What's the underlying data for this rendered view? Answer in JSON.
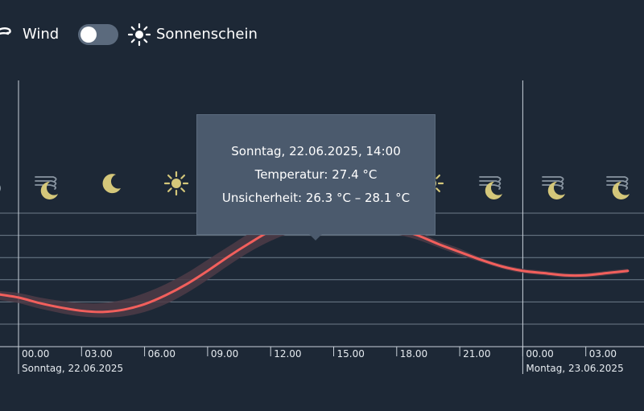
{
  "legend": {
    "wind_label": "Wind",
    "wind_icon": "wind-icon",
    "sunshine_label": "Sonnenschein",
    "sunshine_icon": "sun-icon",
    "sunshine_toggle_on": false
  },
  "tooltip": {
    "line1": "Sonntag, 22.06.2025, 14:00",
    "line2": "Temperatur: 27.4 °C",
    "line3": "Unsicherheit: 26.3 °C – 28.1 °C"
  },
  "colors": {
    "background": "#1d2836",
    "line": "#f25f5c",
    "band": "#4e3b47",
    "grid": "#6f7d8b",
    "icon": "#d4c77a",
    "tooltip": "#4b5a6d"
  },
  "weather_icons": [
    "cloud-icon",
    "wind-icon",
    "moon-icon",
    "moon-icon",
    "sun-icon",
    "sun-icon",
    "sun-icon",
    "sun-icon",
    "sun-icon",
    "wind-icon",
    "moon-icon",
    "wind-icon",
    "moon-icon",
    "wind-icon",
    "moon-icon"
  ],
  "chart_data": {
    "type": "line",
    "series": [
      {
        "x": [
          "21.06 23:00",
          "22.06 00:00",
          "22.06 01:00",
          "22.06 02:00",
          "22.06 03:00",
          "22.06 04:00",
          "22.06 05:00",
          "22.06 06:00",
          "22.06 07:00",
          "22.06 08:00",
          "22.06 09:00",
          "22.06 10:00",
          "22.06 11:00",
          "22.06 12:00",
          "22.06 13:00",
          "22.06 14:00",
          "22.06 15:00",
          "22.06 16:00",
          "22.06 17:00",
          "22.06 18:00",
          "22.06 19:00",
          "22.06 20:00",
          "22.06 21:00",
          "22.06 22:00",
          "22.06 23:00",
          "23.06 00:00",
          "23.06 01:00",
          "23.06 02:00",
          "23.06 03:00",
          "23.06 04:00",
          "23.06 05:00"
        ],
        "values": [
          20.7,
          20.4,
          19.9,
          19.5,
          19.2,
          19.1,
          19.3,
          19.8,
          20.6,
          21.6,
          22.8,
          24.1,
          25.3,
          26.4,
          27.1,
          27.4,
          27.5,
          27.4,
          27.1,
          26.6,
          26.0,
          25.2,
          24.5,
          23.8,
          23.2,
          22.8,
          22.6,
          22.4,
          22.4,
          22.6,
          22.8
        ],
        "lower": [
          20.2,
          19.9,
          19.4,
          19.0,
          18.7,
          18.6,
          18.7,
          19.1,
          19.8,
          20.8,
          22.0,
          23.3,
          24.5,
          25.5,
          26.2,
          26.3,
          26.5,
          26.6,
          26.5,
          26.1,
          25.6,
          24.9,
          24.2,
          23.6,
          23.0,
          22.6,
          22.4,
          22.2,
          22.2,
          22.4,
          22.6
        ],
        "upper": [
          21.0,
          20.8,
          20.4,
          20.1,
          19.9,
          19.9,
          20.2,
          20.8,
          21.6,
          22.6,
          23.8,
          25.0,
          26.2,
          27.2,
          27.9,
          28.1,
          28.1,
          27.9,
          27.5,
          27.0,
          26.3,
          25.5,
          24.8,
          24.0,
          23.4,
          23.0,
          22.8,
          22.6,
          22.6,
          22.8,
          23.0
        ]
      }
    ],
    "highlight": {
      "x": "22.06 14:00",
      "value": 27.4
    },
    "x_tick_labels": [
      "00.00",
      "03.00",
      "06.00",
      "09.00",
      "12.00",
      "15.00",
      "18.00",
      "21.00",
      "00.00",
      "03.00"
    ],
    "day_labels": [
      "Sonntag, 22.06.2025",
      "Montag, 23.06.2025"
    ],
    "grid": true
  }
}
